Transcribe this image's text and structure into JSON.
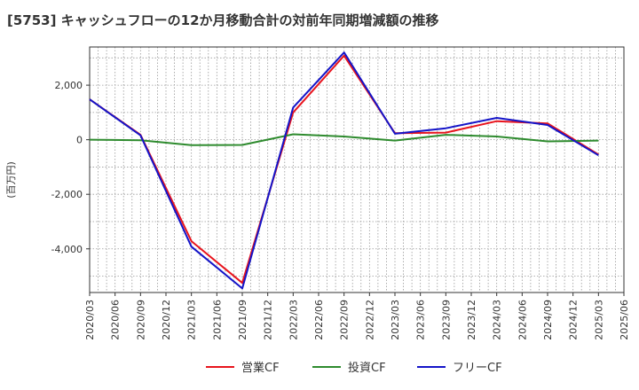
{
  "chart_data": {
    "type": "line",
    "title": "[5753]  キャッシュフローの12か月移動合計の対前年同期増減額の推移",
    "ylabel": "(百万円)",
    "xlabel": "",
    "ylim": [
      -5600,
      3400
    ],
    "yticks": [
      2000,
      0,
      -2000,
      -4000
    ],
    "ytick_labels": [
      "2,000",
      "0",
      "-2,000",
      "-4,000"
    ],
    "x_ticks": [
      "2020/03",
      "2020/06",
      "2020/09",
      "2020/12",
      "2021/03",
      "2021/06",
      "2021/09",
      "2021/12",
      "2022/03",
      "2022/06",
      "2022/09",
      "2022/12",
      "2023/03",
      "2023/06",
      "2023/09",
      "2023/12",
      "2024/03",
      "2024/06",
      "2024/09",
      "2024/12",
      "2025/03",
      "2025/06"
    ],
    "grid": true,
    "legend_position": "bottom",
    "series": [
      {
        "name": "営業CF",
        "color": "#e8141d",
        "x": [
          "2020/03",
          "2020/09",
          "2021/03",
          "2021/09",
          "2022/03",
          "2022/09",
          "2023/03",
          "2023/09",
          "2024/03",
          "2024/09",
          "2025/03"
        ],
        "values": [
          1480,
          180,
          -3720,
          -5250,
          1000,
          3080,
          240,
          260,
          680,
          600,
          -540
        ]
      },
      {
        "name": "投資CF",
        "color": "#2e8b2e",
        "x": [
          "2020/03",
          "2020/09",
          "2021/03",
          "2021/09",
          "2022/03",
          "2022/09",
          "2023/03",
          "2023/09",
          "2024/03",
          "2024/09",
          "2025/03"
        ],
        "values": [
          0,
          -20,
          -200,
          -190,
          200,
          120,
          -30,
          180,
          120,
          -60,
          -30
        ]
      },
      {
        "name": "フリーCF",
        "color": "#1414c8",
        "x": [
          "2020/03",
          "2020/09",
          "2021/03",
          "2021/09",
          "2022/03",
          "2022/09",
          "2023/03",
          "2023/09",
          "2024/03",
          "2024/09",
          "2025/03"
        ],
        "values": [
          1480,
          160,
          -3920,
          -5450,
          1180,
          3200,
          220,
          420,
          800,
          540,
          -570
        ]
      }
    ]
  }
}
